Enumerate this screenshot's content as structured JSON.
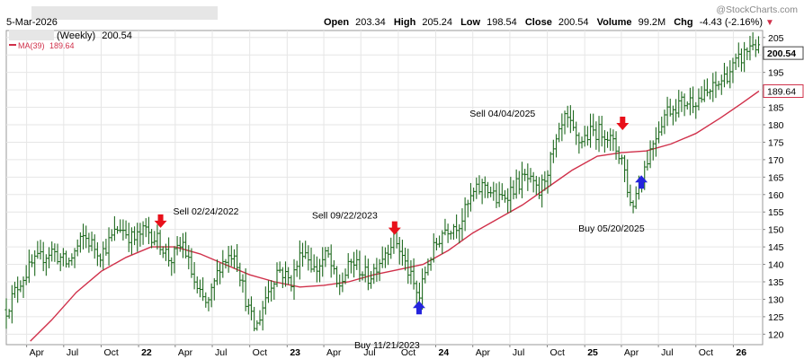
{
  "header": {
    "date": "5-Mar-2026",
    "period": "(Weekly)",
    "last_value": "200.54",
    "ma_label": "MA(39)",
    "ma_value": "189.64",
    "watermark": "@StockCharts.com",
    "open_label": "Open",
    "open": "203.34",
    "high_label": "High",
    "high": "205.24",
    "low_label": "Low",
    "low": "198.54",
    "close_label": "Close",
    "close": "200.54",
    "volume_label": "Volume",
    "volume": "99.2M",
    "chg_label": "Chg",
    "chg": "-4.43 (-2.16%)",
    "chg_marker": "▼"
  },
  "colors": {
    "bars": "#1f6a1f",
    "ma": "#d0304a",
    "sell_arrow": "#e8101a",
    "buy_arrow": "#2424dd",
    "grid": "#e6e6e6",
    "price_tag_bg": "#ffffff"
  },
  "chart_data": {
    "type": "ohlc-bar",
    "y_ticks": [
      120,
      125,
      130,
      135,
      140,
      145,
      150,
      155,
      160,
      165,
      170,
      175,
      180,
      185,
      190,
      195,
      200,
      205
    ],
    "ylim": [
      117,
      207
    ],
    "x_ticks": [
      {
        "label": "Apr",
        "date": "2021-04-01"
      },
      {
        "label": "Jul",
        "date": "2021-07-01"
      },
      {
        "label": "Oct",
        "date": "2021-10-01"
      },
      {
        "label": "22",
        "date": "2022-01-01",
        "bold": true
      },
      {
        "label": "Apr",
        "date": "2022-04-01"
      },
      {
        "label": "Jul",
        "date": "2022-07-01"
      },
      {
        "label": "Oct",
        "date": "2022-10-01"
      },
      {
        "label": "23",
        "date": "2023-01-01",
        "bold": true
      },
      {
        "label": "Apr",
        "date": "2023-04-01"
      },
      {
        "label": "Jul",
        "date": "2023-07-01"
      },
      {
        "label": "Oct",
        "date": "2023-10-01"
      },
      {
        "label": "24",
        "date": "2024-01-01",
        "bold": true
      },
      {
        "label": "Apr",
        "date": "2024-04-01"
      },
      {
        "label": "Jul",
        "date": "2024-07-01"
      },
      {
        "label": "Oct",
        "date": "2024-10-01"
      },
      {
        "label": "25",
        "date": "2025-01-01",
        "bold": true
      },
      {
        "label": "Apr",
        "date": "2025-04-01"
      },
      {
        "label": "Jul",
        "date": "2025-07-01"
      },
      {
        "label": "Oct",
        "date": "2025-10-01"
      },
      {
        "label": "26",
        "date": "2026-01-01",
        "bold": true
      }
    ],
    "xlim": [
      "2021-02-10",
      "2026-03-14"
    ],
    "price_path": [
      [
        "2021-02-10",
        127
      ],
      [
        "2021-03-15",
        135
      ],
      [
        "2021-04-15",
        140
      ],
      [
        "2021-06-01",
        144
      ],
      [
        "2021-07-10",
        140
      ],
      [
        "2021-08-20",
        148
      ],
      [
        "2021-10-01",
        143
      ],
      [
        "2021-11-15",
        151
      ],
      [
        "2021-12-20",
        147
      ],
      [
        "2022-01-20",
        150
      ],
      [
        "2022-02-24",
        146
      ],
      [
        "2022-03-20",
        141
      ],
      [
        "2022-04-20",
        146
      ],
      [
        "2022-05-25",
        132
      ],
      [
        "2022-06-20",
        128
      ],
      [
        "2022-07-20",
        140
      ],
      [
        "2022-08-25",
        144
      ],
      [
        "2022-09-25",
        128
      ],
      [
        "2022-10-15",
        121
      ],
      [
        "2022-11-10",
        131
      ],
      [
        "2022-12-10",
        139
      ],
      [
        "2023-01-10",
        135
      ],
      [
        "2023-02-10",
        145
      ],
      [
        "2023-03-10",
        138
      ],
      [
        "2023-04-10",
        143
      ],
      [
        "2023-05-05",
        133
      ],
      [
        "2023-06-10",
        141
      ],
      [
        "2023-07-20",
        136
      ],
      [
        "2023-08-20",
        142
      ],
      [
        "2023-09-22",
        148
      ],
      [
        "2023-10-15",
        141
      ],
      [
        "2023-11-21",
        130
      ],
      [
        "2023-12-10",
        140
      ],
      [
        "2024-01-20",
        150
      ],
      [
        "2024-03-01",
        152
      ],
      [
        "2024-04-01",
        160
      ],
      [
        "2024-05-01",
        163
      ],
      [
        "2024-06-01",
        158
      ],
      [
        "2024-07-10",
        162
      ],
      [
        "2024-08-10",
        165
      ],
      [
        "2024-09-10",
        160
      ],
      [
        "2024-10-10",
        170
      ],
      [
        "2024-11-15",
        182
      ],
      [
        "2024-12-15",
        175
      ],
      [
        "2025-01-20",
        178
      ],
      [
        "2025-02-20",
        178
      ],
      [
        "2025-04-04",
        170
      ],
      [
        "2025-04-25",
        156
      ],
      [
        "2025-05-20",
        165
      ],
      [
        "2025-06-20",
        176
      ],
      [
        "2025-07-20",
        184
      ],
      [
        "2025-08-20",
        186
      ],
      [
        "2025-09-20",
        187
      ],
      [
        "2025-10-20",
        188
      ],
      [
        "2025-11-20",
        191
      ],
      [
        "2025-12-20",
        195
      ],
      [
        "2026-01-20",
        199
      ],
      [
        "2026-02-20",
        204
      ],
      [
        "2026-03-05",
        200.54
      ]
    ],
    "ma_path": [
      [
        "2021-04-10",
        118
      ],
      [
        "2021-06-01",
        124
      ],
      [
        "2021-08-01",
        132
      ],
      [
        "2021-10-01",
        138
      ],
      [
        "2021-12-01",
        142
      ],
      [
        "2022-02-01",
        145
      ],
      [
        "2022-04-01",
        145
      ],
      [
        "2022-06-01",
        143
      ],
      [
        "2022-08-01",
        140
      ],
      [
        "2022-10-01",
        137
      ],
      [
        "2022-12-01",
        135
      ],
      [
        "2023-02-01",
        133.5
      ],
      [
        "2023-04-01",
        134
      ],
      [
        "2023-06-01",
        135
      ],
      [
        "2023-08-01",
        137
      ],
      [
        "2023-10-01",
        138.5
      ],
      [
        "2023-12-01",
        140
      ],
      [
        "2024-02-01",
        144
      ],
      [
        "2024-04-01",
        149
      ],
      [
        "2024-06-01",
        153
      ],
      [
        "2024-08-01",
        157
      ],
      [
        "2024-10-01",
        162
      ],
      [
        "2024-12-01",
        167
      ],
      [
        "2025-02-01",
        171
      ],
      [
        "2025-04-01",
        172
      ],
      [
        "2025-06-01",
        172.5
      ],
      [
        "2025-08-01",
        174.5
      ],
      [
        "2025-10-01",
        177.5
      ],
      [
        "2025-12-01",
        182
      ],
      [
        "2026-01-20",
        186
      ],
      [
        "2026-03-05",
        189.64
      ]
    ],
    "last_price": 200.54,
    "last_ma": 189.64,
    "signals": [
      {
        "type": "sell",
        "date": "2022-02-24",
        "price": 151.5,
        "label": "Sell 02/24/2022"
      },
      {
        "type": "sell",
        "date": "2023-09-22",
        "price": 149.5,
        "label": "Sell 09/22/2023"
      },
      {
        "type": "buy",
        "date": "2023-11-21",
        "price": 128.5,
        "label": "Buy 11/21/2023"
      },
      {
        "type": "sell",
        "date": "2025-04-04",
        "price": 179.5,
        "label": "Sell 04/04/2025"
      },
      {
        "type": "buy",
        "date": "2025-05-20",
        "price": 164.5,
        "label": "Buy 05/20/2025"
      }
    ]
  }
}
